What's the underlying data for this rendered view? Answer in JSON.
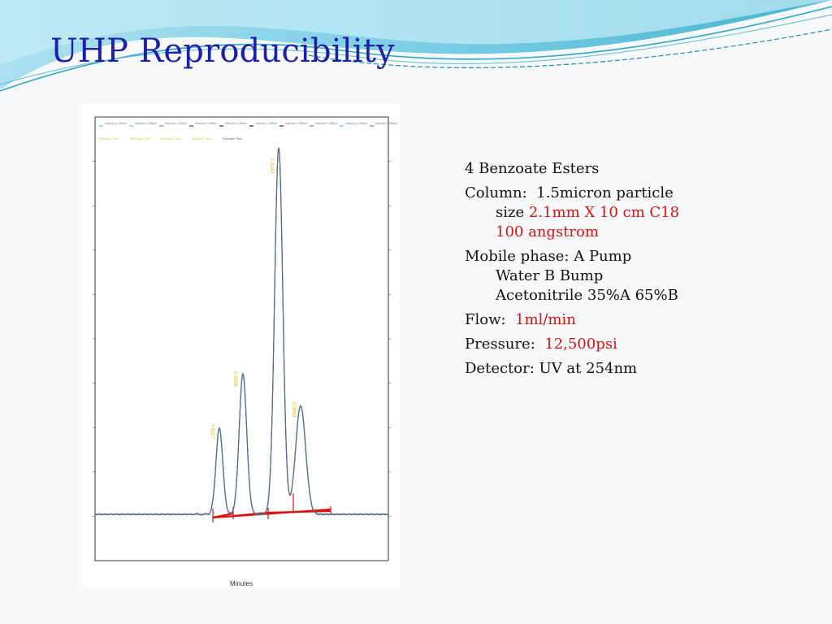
{
  "slide": {
    "title": "UHP Reproducibility"
  },
  "notes": {
    "esters": "4 Benzoate Esters",
    "column_label": "Column:",
    "column_value": "1.5micron particle",
    "size_label": "size",
    "size_value_line1": "2.1mm X 10 cm C18",
    "size_value_line2": "100 angstrom",
    "mobile_label": "Mobile phase:",
    "mobile_value1": "A Pump",
    "mobile_value2": "Water   B Bump",
    "mobile_value3": "Acetonitrile  35%A 65%B",
    "flow_label": "Flow:",
    "flow_value": "1ml/min",
    "pressure_label": "Pressure:",
    "pressure_value": "12,500psi",
    "detector_label": "Detector:",
    "detector_value": "UV at 254nm"
  },
  "colors": {
    "title": "#1c1fa8",
    "highlight": "#e01010",
    "trace": "#4a6a8a",
    "baseline": "#e01010",
    "wave_light": "#8fd9ea",
    "wave_dark": "#2aa8c8"
  },
  "chart_data": {
    "type": "line",
    "xlabel": "Minutes",
    "legend_rows": [
      [
        "Detector 1-254nm",
        "Detector 1-254nm",
        "Detector 1-254nm",
        "Detector 1-254nm",
        "Detector 1-254nm",
        "Detector 1-254nm",
        "Detector 1-254nm",
        "Detector 1-254nm",
        "Detector 1-254nm",
        "Detector 1-254nm"
      ],
      [
        "Retention Time",
        "Retention Time",
        "Retention Time",
        "Retention Time",
        "Retention Time"
      ]
    ],
    "peaks": [
      {
        "label": "0.6117",
        "height": 0.19
      },
      {
        "label": "0.2898",
        "height": 0.31
      },
      {
        "label": "1.4144",
        "height": 0.81
      },
      {
        "label": "0.3869",
        "height": 0.24
      }
    ]
  }
}
